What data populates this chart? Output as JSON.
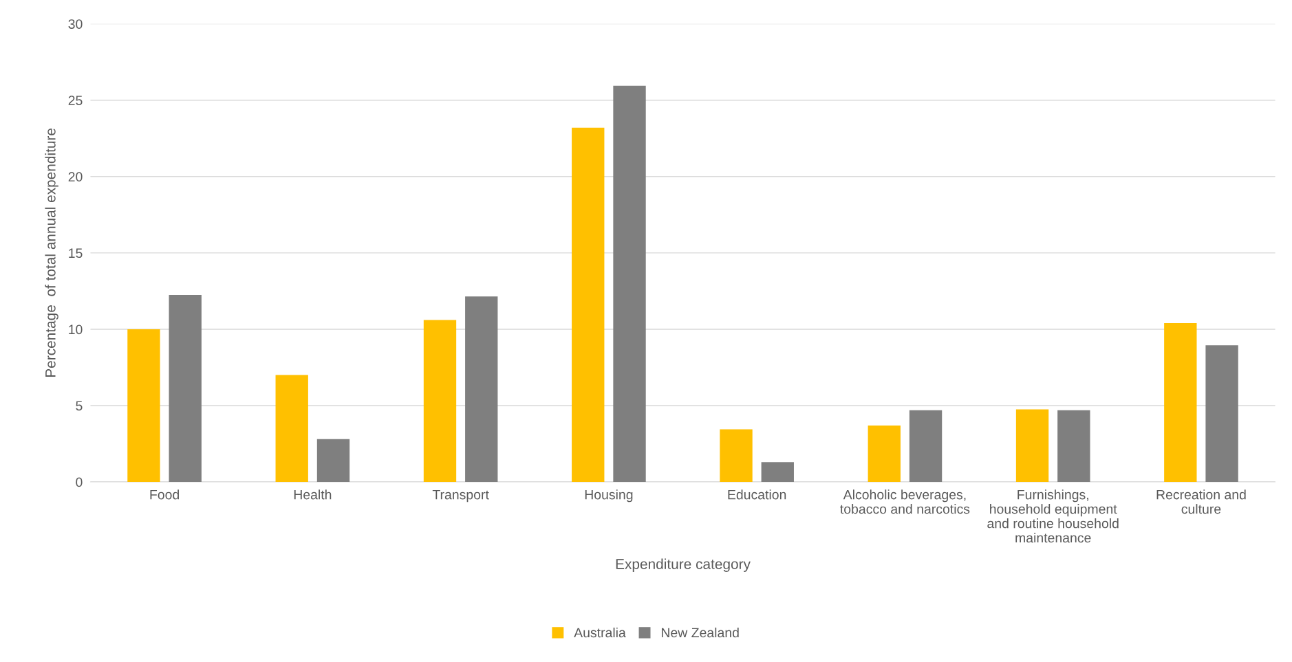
{
  "chart_data": {
    "type": "bar",
    "xlabel": "Expenditure category",
    "ylabel": "Percentage  of total annual expenditure",
    "categories": [
      "Food",
      "Health",
      "Transport",
      "Housing",
      "Education",
      "Alcoholic beverages, tobacco and narcotics",
      "Furnishings, household equipment and routine household maintenance",
      "Recreation and culture"
    ],
    "series": [
      {
        "name": "Australia",
        "color": "#ffc000",
        "values": [
          10.0,
          7.0,
          10.6,
          23.2,
          3.45,
          3.7,
          4.75,
          10.4
        ]
      },
      {
        "name": "New Zealand",
        "color": "#7f7f7f",
        "values": [
          12.25,
          2.8,
          12.15,
          25.95,
          1.3,
          4.7,
          4.7,
          8.95
        ]
      }
    ],
    "ylim": [
      0,
      30
    ],
    "yticks": [
      0,
      5,
      10,
      15,
      20,
      25,
      30
    ],
    "grid": "y",
    "legend": "bottom"
  }
}
